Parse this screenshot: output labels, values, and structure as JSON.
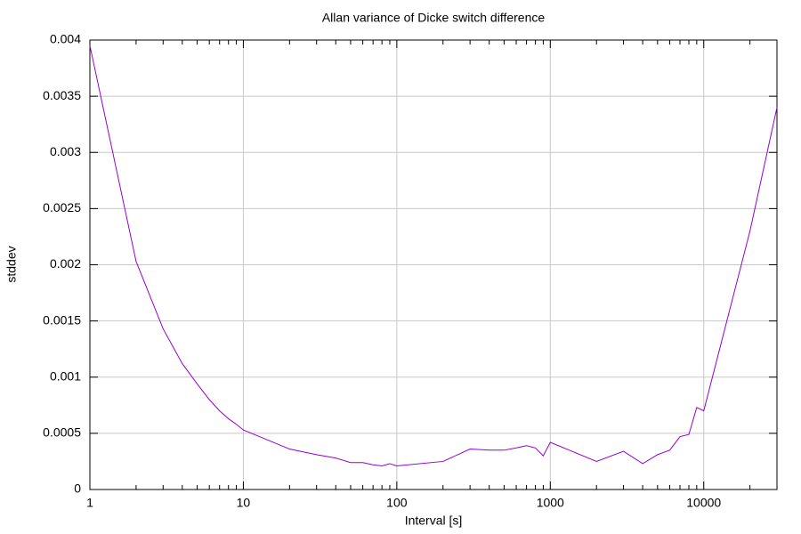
{
  "chart_data": {
    "type": "line",
    "title": "Allan variance of Dicke switch difference",
    "xlabel": "Interval [s]",
    "ylabel": "stddev",
    "xscale": "log",
    "grid": true,
    "color": "#9400d3",
    "x": [
      1,
      2,
      3,
      4,
      5,
      6,
      7,
      8,
      9,
      10,
      20,
      30,
      40,
      50,
      60,
      70,
      80,
      90,
      100,
      200,
      300,
      400,
      500,
      600,
      700,
      800,
      900,
      1000,
      2000,
      3000,
      4000,
      5000,
      6000,
      7000,
      8000,
      9000,
      10000,
      20000,
      30000
    ],
    "values": [
      0.00395,
      0.00203,
      0.00143,
      0.00112,
      0.00094,
      0.0008,
      0.0007,
      0.00063,
      0.00058,
      0.00053,
      0.00036,
      0.00031,
      0.00028,
      0.00024,
      0.00024,
      0.00022,
      0.00021,
      0.00023,
      0.00021,
      0.00025,
      0.00036,
      0.00035,
      0.00035,
      0.00037,
      0.00039,
      0.00037,
      0.0003,
      0.00042,
      0.00025,
      0.00034,
      0.00023,
      0.00031,
      0.00035,
      0.00047,
      0.00049,
      0.00073,
      0.0007,
      0.0023,
      0.0034
    ],
    "xlim": [
      1,
      30000
    ],
    "xticks": [
      1,
      10,
      100,
      1000,
      10000
    ],
    "ylim": [
      0,
      0.004
    ],
    "yticks": [
      0,
      0.0005,
      0.001,
      0.0015,
      0.002,
      0.0025,
      0.003,
      0.0035,
      0.004
    ]
  }
}
